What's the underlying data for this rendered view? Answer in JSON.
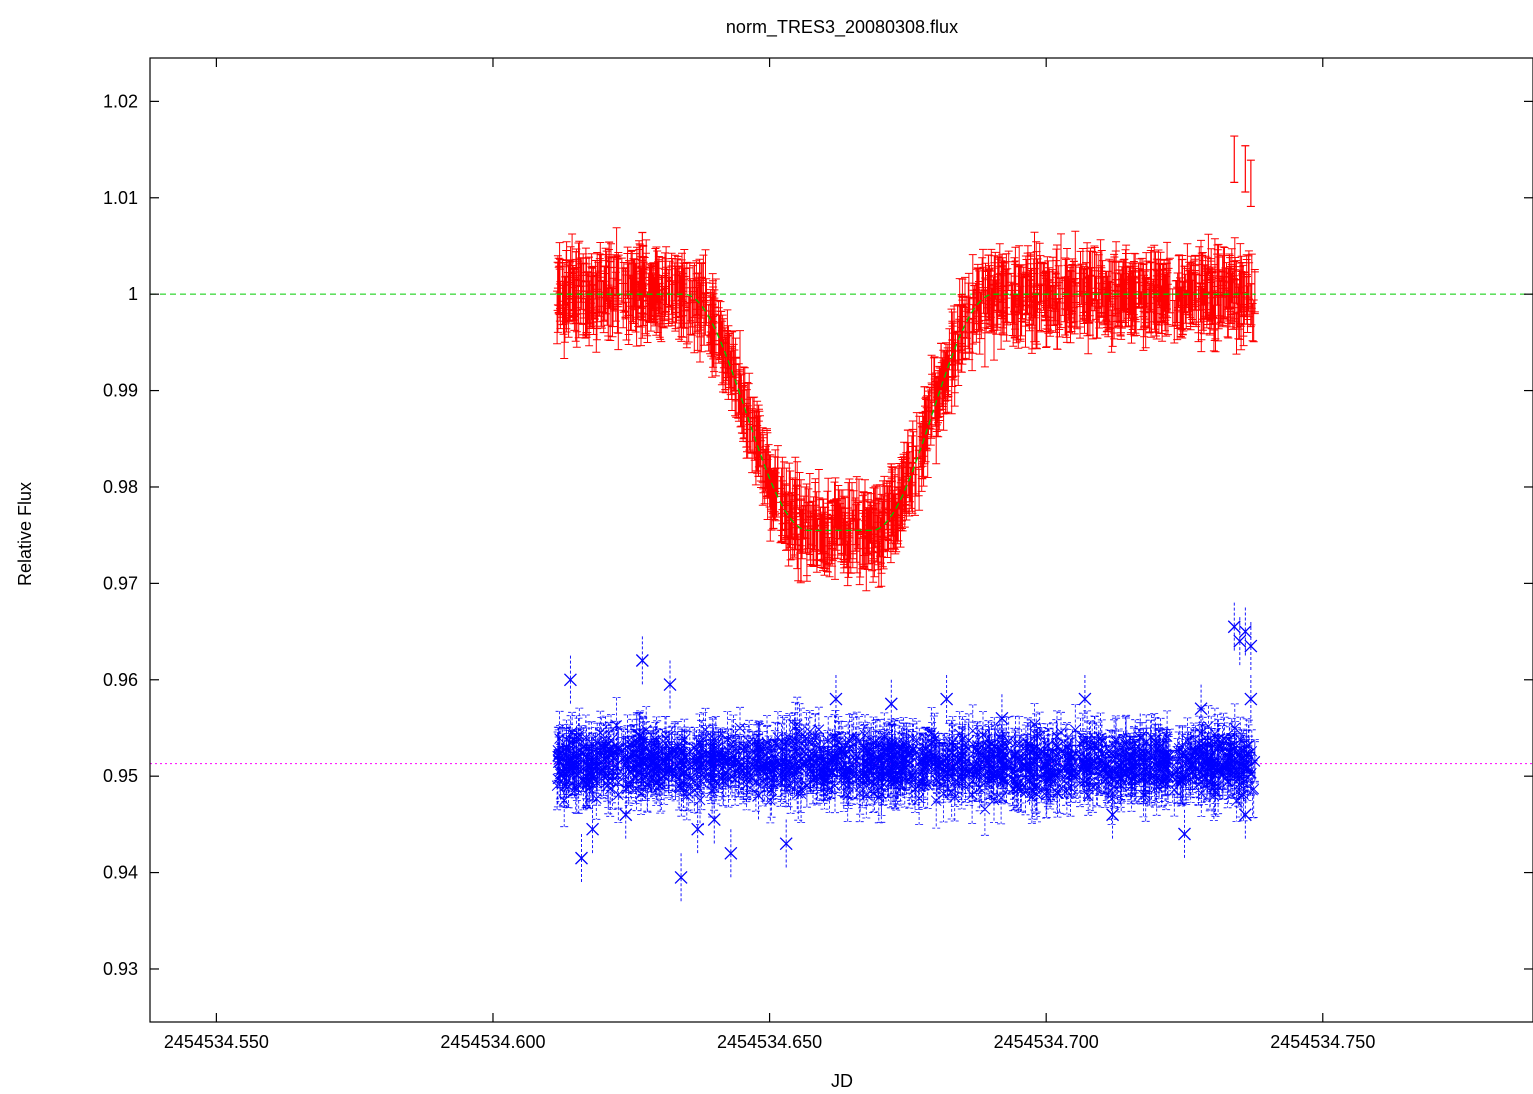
{
  "chart_data": {
    "type": "scatter",
    "title": "norm_TRES3_20080308.flux",
    "xlabel": "JD",
    "ylabel": "Relative Flux",
    "xlim": [
      2454534.538,
      2454534.788
    ],
    "ylim": [
      0.9245,
      1.0245
    ],
    "x_ticks": [
      "2454534.550",
      "2454534.600",
      "2454534.650",
      "2454534.700",
      "2454534.750"
    ],
    "y_ticks": [
      "0.93",
      "0.94",
      "0.95",
      "0.96",
      "0.97",
      "0.98",
      "0.99",
      "1",
      "1.01",
      "1.02"
    ],
    "grid": false,
    "legend": "none",
    "colors": {
      "observed": "#ff0000",
      "model": "#00cc00",
      "residuals": "#0000ff",
      "residual_baseline": "#ff00ff",
      "frame": "#000000"
    },
    "series": [
      {
        "kind": "points-with-errorbars",
        "color": "#ff0000",
        "x_range": [
          2454534.6115,
          2454534.7378
        ],
        "y_error": 0.0024,
        "points": [
          [
            2454534.612,
            1.0005
          ],
          [
            2454534.615,
            1.002
          ],
          [
            2454534.618,
            0.9995
          ],
          [
            2454534.621,
            1.003
          ],
          [
            2454534.624,
            1.0
          ],
          [
            2454534.627,
            1.004
          ],
          [
            2454534.63,
            1.0015
          ],
          [
            2454534.633,
            1.0005
          ],
          [
            2454534.636,
            0.999
          ],
          [
            2454534.639,
            0.9965
          ],
          [
            2454534.642,
            0.9925
          ],
          [
            2454534.645,
            0.988
          ],
          [
            2454534.648,
            0.9835
          ],
          [
            2454534.651,
            0.9795
          ],
          [
            2454534.654,
            0.977
          ],
          [
            2454534.657,
            0.976
          ],
          [
            2454534.66,
            0.9755
          ],
          [
            2454534.663,
            0.9755
          ],
          [
            2454534.666,
            0.976
          ],
          [
            2454534.669,
            0.9775
          ],
          [
            2454534.672,
            0.98
          ],
          [
            2454534.675,
            0.9835
          ],
          [
            2454534.678,
            0.988
          ],
          [
            2454534.681,
            0.9925
          ],
          [
            2454534.684,
            0.9965
          ],
          [
            2454534.687,
            0.9985
          ],
          [
            2454534.69,
            1.0
          ],
          [
            2454534.695,
            1.0005
          ],
          [
            2454534.7,
            1.0
          ],
          [
            2454534.705,
            1.001
          ],
          [
            2454534.71,
            1.0
          ],
          [
            2454534.715,
            1.0005
          ],
          [
            2454534.72,
            0.9995
          ],
          [
            2454534.725,
            1.0005
          ],
          [
            2454534.73,
            1.0
          ],
          [
            2454534.734,
            1.001
          ],
          [
            2454534.734,
            1.014
          ],
          [
            2454534.736,
            1.013
          ],
          [
            2454534.737,
            1.0115
          ]
        ]
      },
      {
        "kind": "model-curve",
        "color": "#00cc00",
        "style": "dashed",
        "baseline": 1.0,
        "depth": 0.0245,
        "ingress": [
          2454534.6345,
          2454534.657
        ],
        "egress": [
          2454534.6685,
          2454534.6905
        ]
      },
      {
        "kind": "points-with-errorbars",
        "color": "#0000ff",
        "marker": "x",
        "x_range": [
          2454534.6115,
          2454534.7378
        ],
        "y_error": 0.0025,
        "points": [
          [
            2454534.612,
            0.9515
          ],
          [
            2454534.614,
            0.96
          ],
          [
            2454534.616,
            0.9415
          ],
          [
            2454534.618,
            0.9445
          ],
          [
            2454534.62,
            0.953
          ],
          [
            2454534.624,
            0.946
          ],
          [
            2454534.627,
            0.962
          ],
          [
            2454534.63,
            0.951
          ],
          [
            2454534.632,
            0.9595
          ],
          [
            2454534.634,
            0.9395
          ],
          [
            2454534.637,
            0.9445
          ],
          [
            2454534.64,
            0.9455
          ],
          [
            2454534.643,
            0.942
          ],
          [
            2454534.648,
            0.948
          ],
          [
            2454534.653,
            0.943
          ],
          [
            2454534.657,
            0.952
          ],
          [
            2454534.662,
            0.958
          ],
          [
            2454534.667,
            0.95
          ],
          [
            2454534.672,
            0.9575
          ],
          [
            2454534.677,
            0.949
          ],
          [
            2454534.682,
            0.958
          ],
          [
            2454534.687,
            0.951
          ],
          [
            2454534.692,
            0.956
          ],
          [
            2454534.697,
            0.9495
          ],
          [
            2454534.702,
            0.953
          ],
          [
            2454534.707,
            0.958
          ],
          [
            2454534.712,
            0.946
          ],
          [
            2454534.717,
            0.954
          ],
          [
            2454534.722,
            0.95
          ],
          [
            2454534.725,
            0.944
          ],
          [
            2454534.728,
            0.957
          ],
          [
            2454534.731,
            0.9505
          ],
          [
            2454534.734,
            0.9655
          ],
          [
            2454534.735,
            0.964
          ],
          [
            2454534.736,
            0.965
          ],
          [
            2454534.737,
            0.9635
          ],
          [
            2454534.737,
            0.958
          ],
          [
            2454534.736,
            0.946
          ]
        ]
      },
      {
        "kind": "constant-line",
        "color": "#ff00ff",
        "style": "dotted",
        "y": 0.9513
      }
    ]
  }
}
